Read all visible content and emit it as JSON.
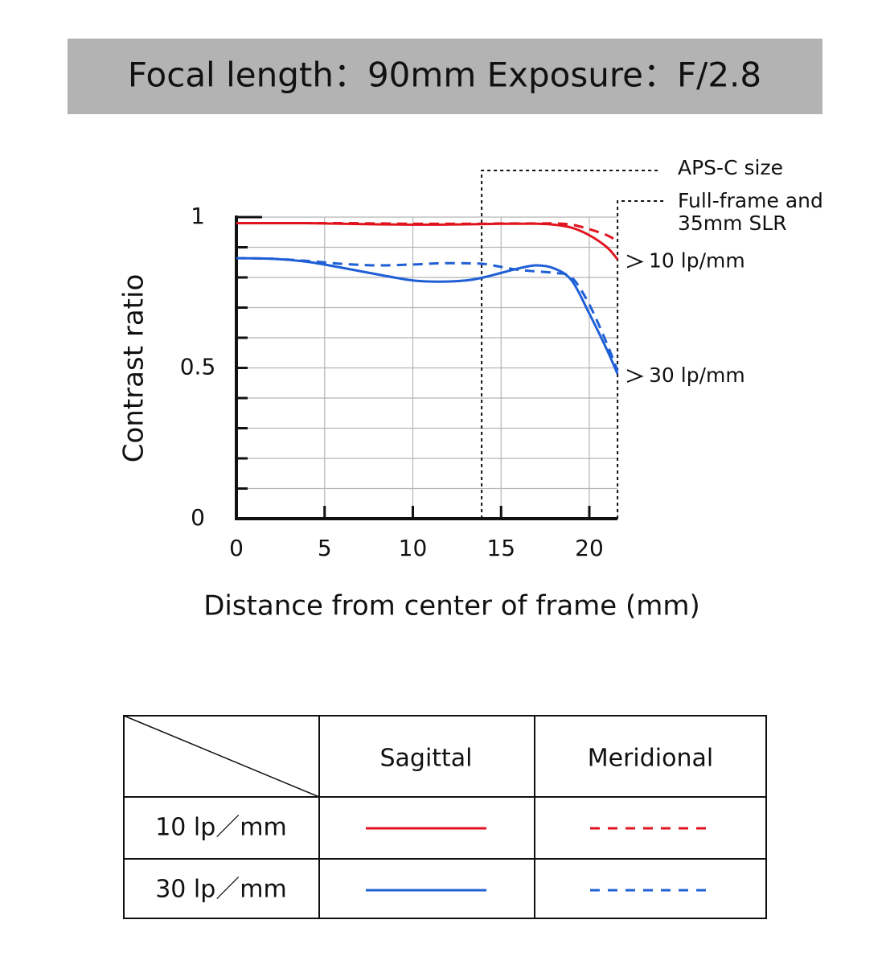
{
  "chart_data": {
    "type": "line",
    "title": "Focal length：90mm  Exposure：F/2.8",
    "x_label": "Distance from center of frame (mm)",
    "y_label": "Contrast ratio",
    "x": [
      0,
      2,
      4,
      6,
      8,
      10,
      11.5,
      13,
      14,
      15,
      16,
      17,
      18,
      19,
      20,
      21,
      21.6
    ],
    "series": [
      {
        "frequency": "10 lp／mm",
        "direction": "Sagittal",
        "color": "#e0141e",
        "dashed": false,
        "values": [
          0.98,
          0.98,
          0.98,
          0.978,
          0.976,
          0.975,
          0.975,
          0.976,
          0.977,
          0.978,
          0.978,
          0.978,
          0.975,
          0.965,
          0.94,
          0.9,
          0.86
        ]
      },
      {
        "frequency": "10 lp／mm",
        "direction": "Meridional",
        "color": "#e0141e",
        "dashed": true,
        "values": [
          0.98,
          0.98,
          0.98,
          0.98,
          0.979,
          0.978,
          0.978,
          0.978,
          0.978,
          0.979,
          0.979,
          0.979,
          0.979,
          0.975,
          0.96,
          0.94,
          0.92
        ]
      },
      {
        "frequency": "30 lp／mm",
        "direction": "Sagittal",
        "color": "#1f5fd6",
        "dashed": false,
        "values": [
          0.864,
          0.862,
          0.852,
          0.832,
          0.81,
          0.79,
          0.786,
          0.79,
          0.8,
          0.815,
          0.83,
          0.84,
          0.83,
          0.79,
          0.68,
          0.56,
          0.48
        ]
      },
      {
        "frequency": "30 lp／mm",
        "direction": "Meridional",
        "color": "#1f5fd6",
        "dashed": true,
        "values": [
          0.864,
          0.862,
          0.855,
          0.845,
          0.84,
          0.843,
          0.847,
          0.847,
          0.845,
          0.835,
          0.825,
          0.82,
          0.815,
          0.8,
          0.71,
          0.58,
          0.49
        ]
      }
    ],
    "xlim": [
      0,
      21.6
    ],
    "ylim": [
      0,
      1
    ],
    "xticks": [
      0,
      5,
      10,
      15,
      20
    ],
    "yticks": [
      0,
      0.5,
      1
    ],
    "y_minor_ticks": [
      0.1,
      0.2,
      0.3,
      0.4,
      0.6,
      0.7,
      0.8,
      0.9
    ],
    "grid": true,
    "aps_c_x": 13.9,
    "aps_c_label": "APS-C size",
    "full_frame_x": 21.6,
    "full_frame_label": [
      "Full-frame and",
      "35mm SLR"
    ],
    "line_labels": [
      "10 lp/mm",
      "30 lp/mm"
    ]
  }
}
